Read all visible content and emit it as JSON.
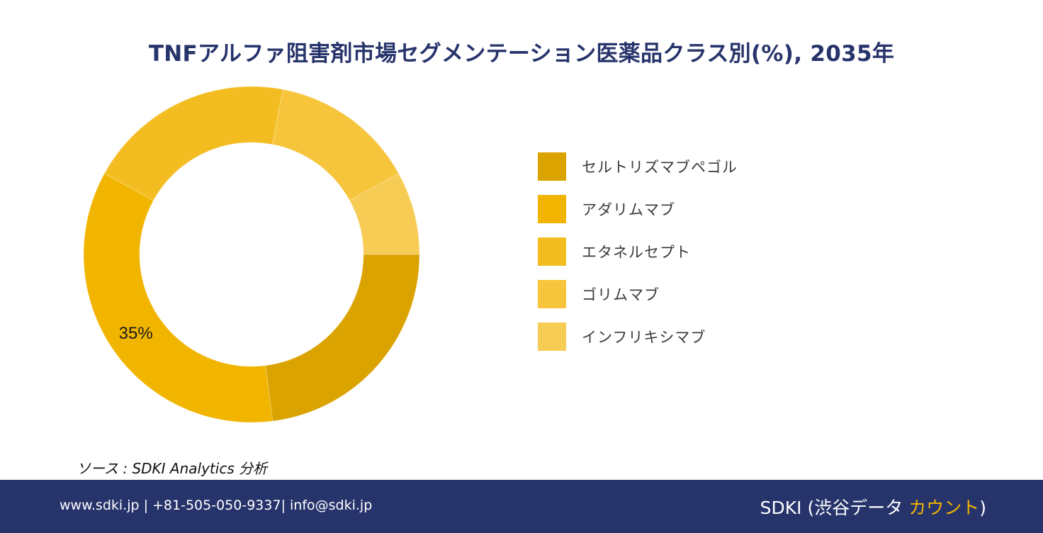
{
  "chart_data": {
    "type": "pie",
    "title": "TNFアルファ阻害剤市場セグメンテーション医薬品クラス別(%), 2035年",
    "categories": [
      "セルトリズマブペゴル",
      "アダリムマブ",
      "エタネルセプト",
      "ゴリムマブ",
      "インフリキシマブ"
    ],
    "values": [
      23,
      35,
      20,
      14,
      8
    ],
    "colors": [
      "#dba300",
      "#f1b500",
      "#f3bd22",
      "#f6c53c",
      "#f7cc55"
    ],
    "data_labels": [
      "",
      "35%",
      "",
      "",
      ""
    ],
    "donut": true,
    "legend_position": "right"
  },
  "source": "ソース : SDKI Analytics 分析",
  "footer": {
    "contact": "www.sdki.jp | +81-505-050-9337| info@sdki.jp",
    "brand_prefix": "SDKI (渋谷データ ",
    "brand_accent": "カウント",
    "brand_suffix": ")"
  }
}
